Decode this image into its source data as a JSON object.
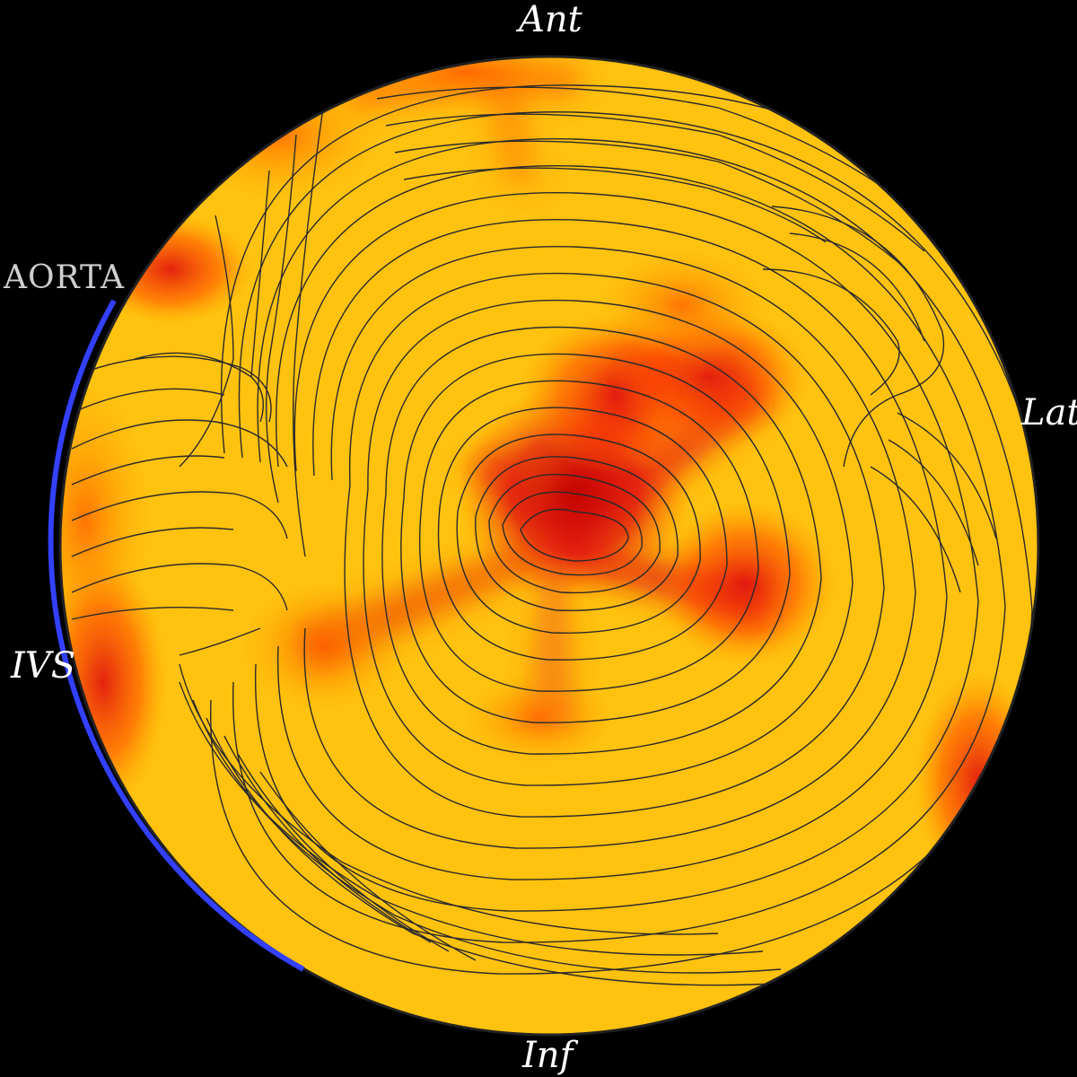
{
  "labels": {
    "anterior": "Ant",
    "lateral": "Lat",
    "septal": "IVS",
    "inferior": "Inf",
    "aorta": "AORTA"
  },
  "colors": {
    "background": "#000000",
    "base_fill": "#ffc20e",
    "hot": "#e01010",
    "warm": "#ff6a00",
    "streamline": "#2a2a2a",
    "rim": "#3340ff",
    "rim_edge": "#222222"
  }
}
